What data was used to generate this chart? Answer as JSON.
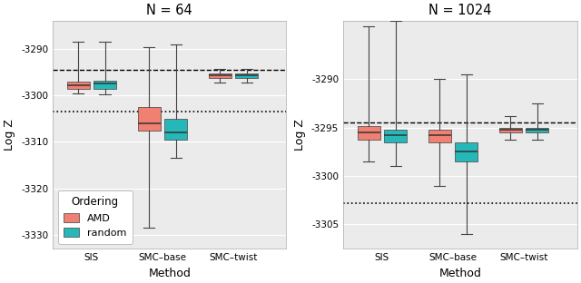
{
  "panels": [
    {
      "title": "N = 64",
      "ylim": [
        -3333,
        -3284
      ],
      "yticks": [
        -3330,
        -3320,
        -3310,
        -3300,
        -3290
      ],
      "ylabel": "Log Z",
      "xlabel": "Method",
      "dashed_line": -3294.5,
      "dotted_line": -3303.5,
      "methods": [
        "SIS",
        "SMC-base",
        "SMC-twist"
      ],
      "AMD": {
        "SIS": {
          "q1": -3298.5,
          "median": -3297.8,
          "q3": -3297.0,
          "whislo": -3299.5,
          "whishi": -3288.5
        },
        "SMC-base": {
          "q1": -3307.5,
          "median": -3306.0,
          "q3": -3302.5,
          "whislo": -3328.5,
          "whishi": -3289.5
        },
        "SMC-twist": {
          "q1": -3296.2,
          "median": -3295.7,
          "q3": -3295.2,
          "whislo": -3297.2,
          "whishi": -3294.2
        }
      },
      "random": {
        "SIS": {
          "q1": -3298.5,
          "median": -3297.5,
          "q3": -3296.8,
          "whislo": -3299.8,
          "whishi": -3288.5
        },
        "SMC-base": {
          "q1": -3309.5,
          "median": -3308.0,
          "q3": -3305.0,
          "whislo": -3313.5,
          "whishi": -3289.0
        },
        "SMC-twist": {
          "q1": -3296.2,
          "median": -3295.7,
          "q3": -3295.2,
          "whislo": -3297.2,
          "whishi": -3294.2
        }
      }
    },
    {
      "title": "N = 1024",
      "ylim": [
        -3307.5,
        -3284
      ],
      "yticks": [
        -3305,
        -3300,
        -3295,
        -3290
      ],
      "ylabel": "Log Z",
      "xlabel": "Method",
      "dashed_line": -3294.5,
      "dotted_line": -3302.8,
      "methods": [
        "SIS",
        "SMC-base",
        "SMC-twist"
      ],
      "AMD": {
        "SIS": {
          "q1": -3296.2,
          "median": -3295.5,
          "q3": -3294.8,
          "whislo": -3298.5,
          "whishi": -3284.5
        },
        "SMC-base": {
          "q1": -3296.5,
          "median": -3295.8,
          "q3": -3295.2,
          "whislo": -3301.0,
          "whishi": -3290.0
        },
        "SMC-twist": {
          "q1": -3295.5,
          "median": -3295.2,
          "q3": -3295.0,
          "whislo": -3296.2,
          "whishi": -3293.8
        }
      },
      "random": {
        "SIS": {
          "q1": -3296.5,
          "median": -3295.8,
          "q3": -3295.2,
          "whislo": -3299.0,
          "whishi": -3284.0
        },
        "SMC-base": {
          "q1": -3298.5,
          "median": -3297.5,
          "q3": -3296.5,
          "whislo": -3306.0,
          "whishi": -3289.5
        },
        "SMC-twist": {
          "q1": -3295.5,
          "median": -3295.2,
          "q3": -3295.0,
          "whislo": -3296.2,
          "whishi": -3292.5
        }
      }
    }
  ],
  "color_AMD": "#F08072",
  "color_random": "#26B8B8",
  "box_width": 0.32,
  "legend_title": "Ordering",
  "legend_labels": [
    "AMD",
    "random"
  ],
  "figsize": [
    6.4,
    3.12
  ],
  "dpi": 100,
  "panel_bg": "#EBEBEB",
  "grid_color": "#FFFFFF",
  "spine_color": "#AAAAAA"
}
